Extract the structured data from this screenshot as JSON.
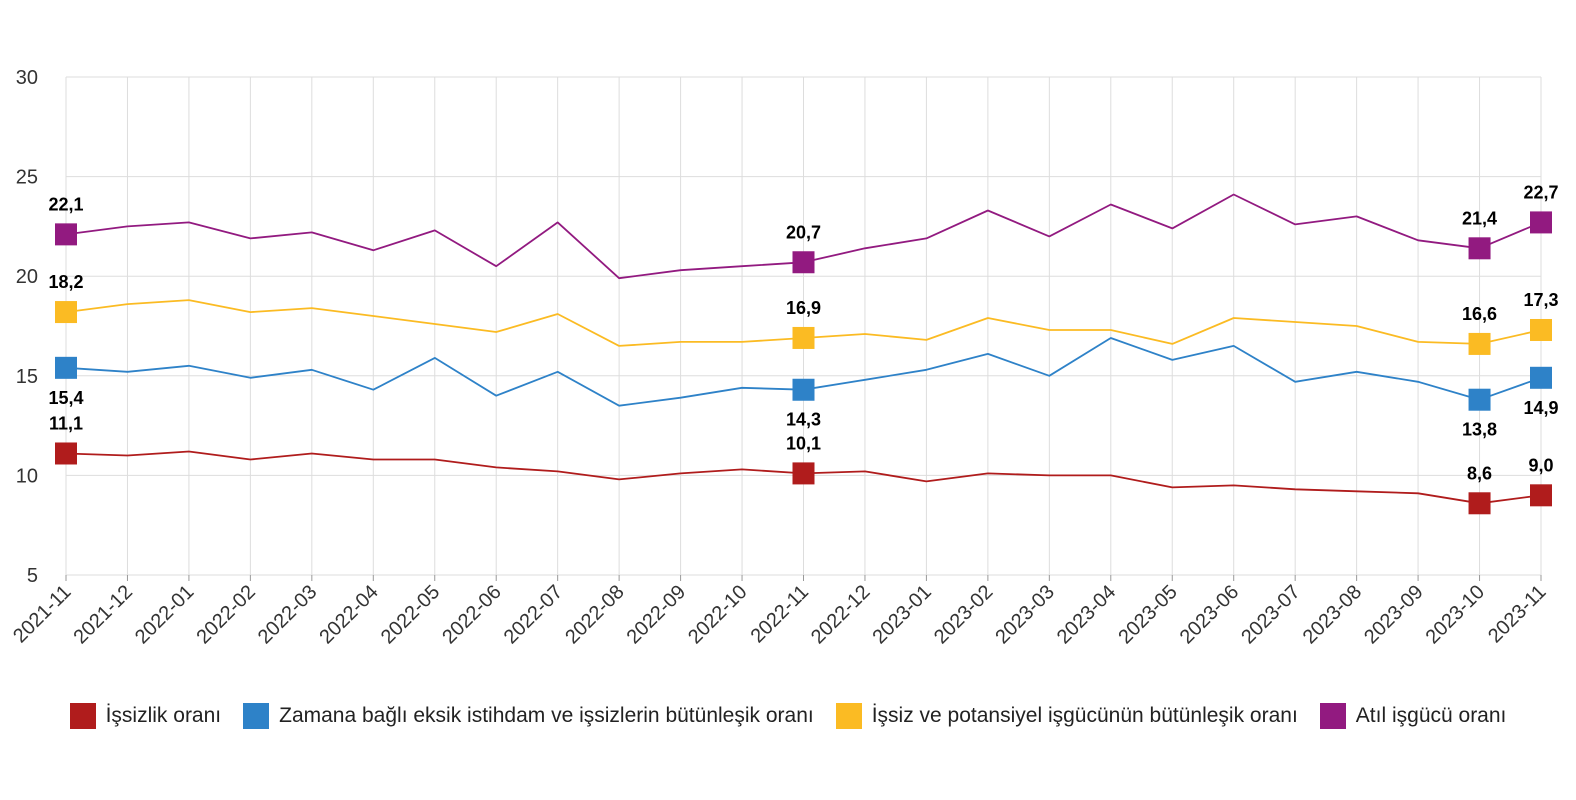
{
  "chart_data": {
    "type": "line",
    "title": "",
    "xlabel": "",
    "ylabel": "",
    "ylim": [
      5,
      30
    ],
    "yticks": [
      "5",
      "10",
      "15",
      "20",
      "25",
      "30"
    ],
    "grid": true,
    "legend_position": "bottom",
    "categories": [
      "2021-11",
      "2021-12",
      "2022-01",
      "2022-02",
      "2022-03",
      "2022-04",
      "2022-05",
      "2022-06",
      "2022-07",
      "2022-08",
      "2022-09",
      "2022-10",
      "2022-11",
      "2022-12",
      "2023-01",
      "2023-02",
      "2023-03",
      "2023-04",
      "2023-05",
      "2023-06",
      "2023-07",
      "2023-08",
      "2023-09",
      "2023-10",
      "2023-11"
    ],
    "series": [
      {
        "name": "İşsizlik oranı",
        "color": "#b01c1c",
        "values": [
          11.1,
          11.0,
          11.2,
          10.8,
          11.1,
          10.8,
          10.8,
          10.4,
          10.2,
          9.8,
          10.1,
          10.3,
          10.1,
          10.2,
          9.7,
          10.1,
          10.0,
          10.0,
          9.4,
          9.5,
          9.3,
          9.2,
          9.1,
          8.6,
          9.0
        ],
        "labels": [
          {
            "index": 0,
            "text": "11,1",
            "pos": "above"
          },
          {
            "index": 12,
            "text": "10,1",
            "pos": "above"
          },
          {
            "index": 23,
            "text": "8,6",
            "pos": "above"
          },
          {
            "index": 24,
            "text": "9,0",
            "pos": "above"
          }
        ]
      },
      {
        "name": "Zamana bağlı eksik istihdam ve işsizlerin bütünleşik oranı",
        "color": "#2e82c8",
        "values": [
          15.4,
          15.2,
          15.5,
          14.9,
          15.3,
          14.3,
          15.9,
          14.0,
          15.2,
          13.5,
          13.9,
          14.4,
          14.3,
          14.8,
          15.3,
          16.1,
          15.0,
          16.9,
          15.8,
          16.5,
          14.7,
          15.2,
          14.7,
          13.8,
          14.9
        ],
        "labels": [
          {
            "index": 0,
            "text": "15,4",
            "pos": "below"
          },
          {
            "index": 12,
            "text": "14,3",
            "pos": "below"
          },
          {
            "index": 23,
            "text": "13,8",
            "pos": "below"
          },
          {
            "index": 24,
            "text": "14,9",
            "pos": "below"
          }
        ]
      },
      {
        "name": "İşsiz ve potansiyel işgücünün bütünleşik oranı",
        "color": "#fbbb23",
        "values": [
          18.2,
          18.6,
          18.8,
          18.2,
          18.4,
          18.0,
          17.6,
          17.2,
          18.1,
          16.5,
          16.7,
          16.7,
          16.9,
          17.1,
          16.8,
          17.9,
          17.3,
          17.3,
          16.6,
          17.9,
          17.7,
          17.5,
          16.7,
          16.6,
          17.3
        ],
        "labels": [
          {
            "index": 0,
            "text": "18,2",
            "pos": "above"
          },
          {
            "index": 12,
            "text": "16,9",
            "pos": "above"
          },
          {
            "index": 23,
            "text": "16,6",
            "pos": "above"
          },
          {
            "index": 24,
            "text": "17,3",
            "pos": "above"
          }
        ]
      },
      {
        "name": "Atıl işgücü oranı",
        "color": "#921a80",
        "values": [
          22.1,
          22.5,
          22.7,
          21.9,
          22.2,
          21.3,
          22.3,
          20.5,
          22.7,
          19.9,
          20.3,
          20.5,
          20.7,
          21.4,
          21.9,
          23.3,
          22.0,
          23.6,
          22.4,
          24.1,
          22.6,
          23.0,
          21.8,
          21.4,
          22.7
        ],
        "labels": [
          {
            "index": 0,
            "text": "22,1",
            "pos": "above"
          },
          {
            "index": 12,
            "text": "20,7",
            "pos": "above"
          },
          {
            "index": 23,
            "text": "21,4",
            "pos": "above"
          },
          {
            "index": 24,
            "text": "22,7",
            "pos": "above"
          }
        ]
      }
    ]
  }
}
